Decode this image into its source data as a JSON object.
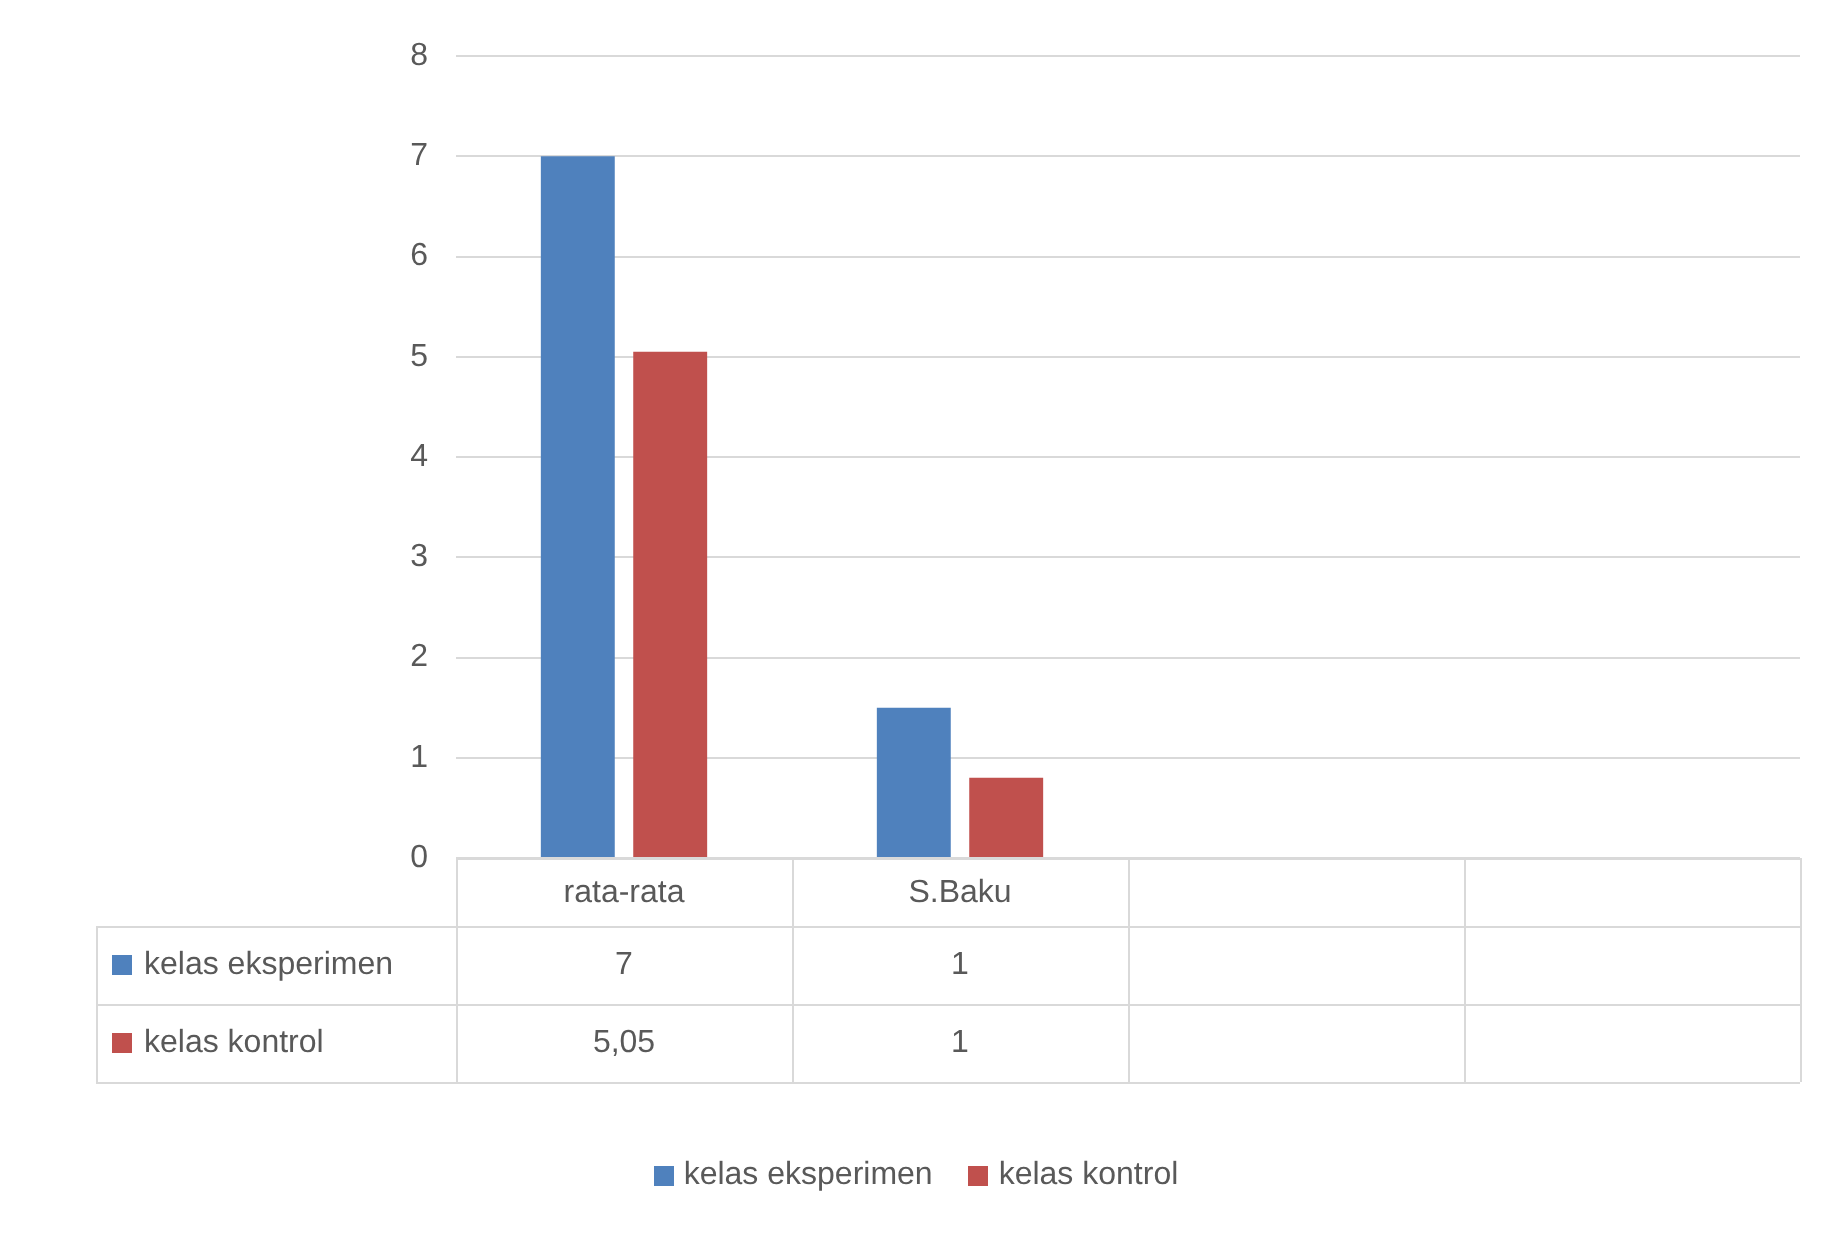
{
  "chart_data": {
    "type": "bar",
    "categories": [
      "rata-rata",
      "S.Baku",
      null,
      null
    ],
    "series": [
      {
        "name": "kelas eksperimen",
        "color": "#4f81bd",
        "values": [
          7,
          1.5,
          null,
          null
        ],
        "value_labels": [
          "7",
          "1",
          null,
          null
        ]
      },
      {
        "name": "kelas kontrol",
        "color": "#c0504d",
        "values": [
          5.05,
          0.8,
          null,
          null
        ],
        "value_labels": [
          "5,05",
          "1",
          null,
          null
        ]
      }
    ],
    "ylim": [
      0,
      8
    ],
    "yticks": [
      0,
      1,
      2,
      3,
      4,
      5,
      6,
      7,
      8
    ],
    "grid": "y",
    "legend": "bottom"
  }
}
